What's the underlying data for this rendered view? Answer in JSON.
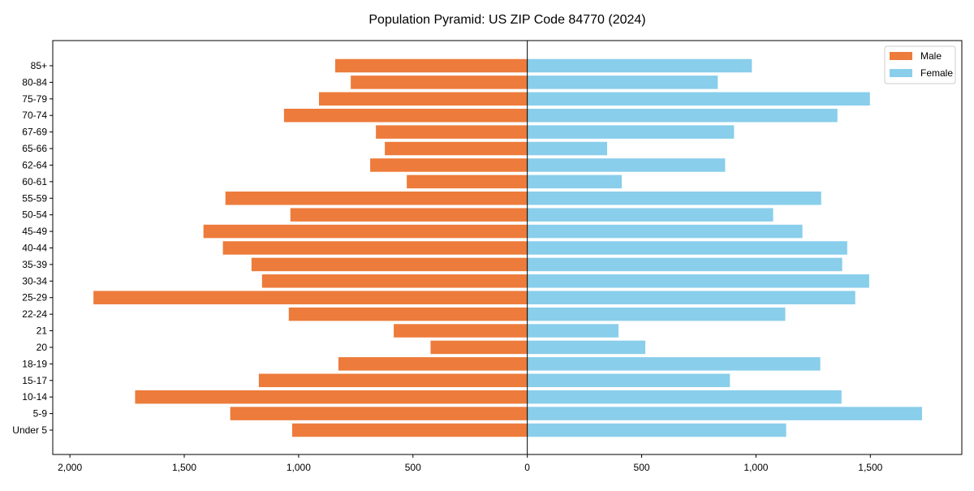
{
  "chart_data": {
    "type": "bar",
    "orientation": "horizontal-pyramid",
    "title": "Population Pyramid: US ZIP Code 84770 (2024)",
    "xlabel": "",
    "ylabel": "",
    "xlim": [
      -2075,
      1900
    ],
    "xticks": [
      -2000,
      -1500,
      -1000,
      -500,
      0,
      500,
      1000,
      1500
    ],
    "xtick_labels": [
      "2,000",
      "1,500",
      "1,000",
      "500",
      "0",
      "500",
      "1,000",
      "1,500"
    ],
    "categories": [
      "85+",
      "80-84",
      "75-79",
      "70-74",
      "67-69",
      "65-66",
      "62-64",
      "60-61",
      "55-59",
      "50-54",
      "45-49",
      "40-44",
      "35-39",
      "30-34",
      "25-29",
      "22-24",
      "21",
      "20",
      "18-19",
      "15-17",
      "10-14",
      "5-9",
      "Under 5"
    ],
    "series": [
      {
        "name": "Male",
        "color": "#ED7B3B",
        "values": [
          840,
          772,
          911,
          1064,
          662,
          623,
          687,
          527,
          1320,
          1036,
          1416,
          1331,
          1206,
          1160,
          1897,
          1043,
          584,
          423,
          826,
          1174,
          1715,
          1299,
          1028
        ]
      },
      {
        "name": "Female",
        "color": "#89CEEB",
        "values": [
          982,
          833,
          1498,
          1356,
          904,
          349,
          865,
          413,
          1285,
          1075,
          1203,
          1399,
          1377,
          1495,
          1434,
          1128,
          399,
          516,
          1281,
          886,
          1374,
          1726,
          1132
        ]
      }
    ],
    "legend": "top-right",
    "grid": false
  }
}
